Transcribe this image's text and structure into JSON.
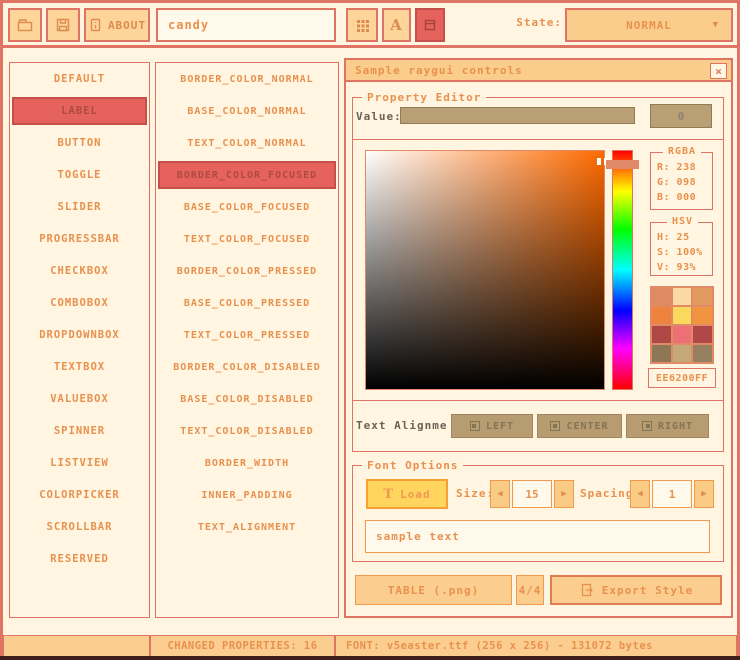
{
  "icons": {
    "dropdown": "▼",
    "arrow_left": "◀",
    "arrow_right": "▶",
    "close": "×",
    "load_t": "T",
    "font_a": "A"
  },
  "toolbar": {
    "about_button": "ABOUT",
    "style_name_input": "candy",
    "state_label": "State:",
    "state_dropdown_value": "NORMAL"
  },
  "controls_list": {
    "items": [
      "DEFAULT",
      "LABEL",
      "BUTTON",
      "TOGGLE",
      "SLIDER",
      "PROGRESSBAR",
      "CHECKBOX",
      "COMBOBOX",
      "DROPDOWNBOX",
      "TEXTBOX",
      "VALUEBOX",
      "SPINNER",
      "LISTVIEW",
      "COLORPICKER",
      "SCROLLBAR",
      "RESERVED"
    ],
    "selected_index": 1
  },
  "properties_list": {
    "items": [
      "BORDER_COLOR_NORMAL",
      "BASE_COLOR_NORMAL",
      "TEXT_COLOR_NORMAL",
      "BORDER_COLOR_FOCUSED",
      "BASE_COLOR_FOCUSED",
      "TEXT_COLOR_FOCUSED",
      "BORDER_COLOR_PRESSED",
      "BASE_COLOR_PRESSED",
      "TEXT_COLOR_PRESSED",
      "BORDER_COLOR_DISABLED",
      "BASE_COLOR_DISABLED",
      "TEXT_COLOR_DISABLED",
      "BORDER_WIDTH",
      "INNER_PADDING",
      "TEXT_ALIGNMENT"
    ],
    "selected_index": 3
  },
  "sample_window": {
    "title": "Sample raygui controls"
  },
  "property_editor": {
    "title": "Property Editor",
    "value_label": "Value:",
    "value_box": "0",
    "rgba_panel": {
      "title": "RGBA",
      "rows": [
        "R: 238",
        "G: 098",
        "B: 000"
      ]
    },
    "hsv_panel": {
      "title": "HSV",
      "rows": [
        "H: 25",
        "S: 100%",
        "V: 93%"
      ]
    },
    "text_alignment_label": "Text Alignme",
    "align_buttons": [
      "LEFT",
      "CENTER",
      "RIGHT"
    ]
  },
  "font_options": {
    "title": "Font Options",
    "load_button": "Load",
    "size_label": "Size:",
    "size_value": "15",
    "spacing_label": "Spacing:",
    "spacing_value": "1",
    "sample_text": "sample text"
  },
  "export_bar": {
    "table_button": "TABLE (.png)",
    "count": "4/4",
    "export_button": "Export Style"
  },
  "status_bar": {
    "changed_properties": "CHANGED PROPERTIES: 16",
    "font_info": "FONT: v5easter.ttf (256 x 256) - 131072 bytes"
  },
  "palette": {
    "selected_color_hex": "EE6200FF",
    "accent_coral": "#DF7465",
    "accent_orange": "#E8914E",
    "selected_item_red": "#E5635C",
    "swatches": [
      "#DE8A63",
      "#FCD9A3",
      "#E39A61",
      "#EF833D",
      "#FBD95E",
      "#F2943F",
      "#B04747",
      "#EC7076",
      "#B04848",
      "#8D7754",
      "#C3A878",
      "#97805F"
    ]
  }
}
